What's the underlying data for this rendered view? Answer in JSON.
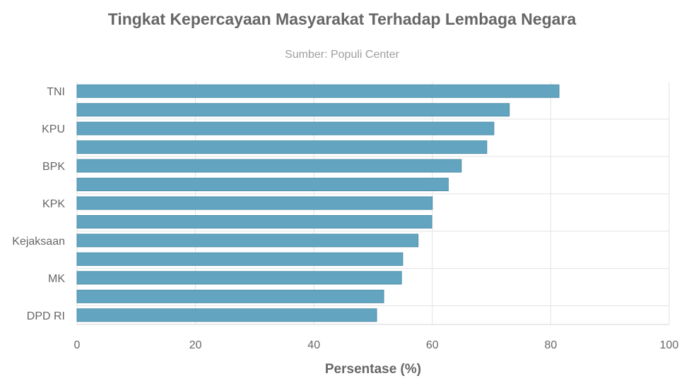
{
  "chart_data": {
    "type": "bar",
    "orientation": "horizontal",
    "title": "Tingkat Kepercayaan Masyarakat Terhadap Lembaga Negara",
    "subtitle": "Sumber: Populi Center",
    "xlabel": "Persentase (%)",
    "ylabel": "",
    "xlim": [
      0,
      100
    ],
    "xticks": [
      "0",
      "20",
      "40",
      "60",
      "80",
      "100"
    ],
    "categories": [
      "TNI",
      "",
      "KPU",
      "",
      "BPK",
      "",
      "KPK",
      "",
      "Kejaksaan",
      "",
      "MK",
      "",
      "DPD RI"
    ],
    "values": [
      81.4,
      73.0,
      70.4,
      69.2,
      64.9,
      62.7,
      60.0,
      59.9,
      57.6,
      55.0,
      54.8,
      51.8,
      50.6
    ],
    "grid": true,
    "legend": "none",
    "bar_color": "#63a5c0",
    "bar_edge_color": "#4e8fa9"
  }
}
